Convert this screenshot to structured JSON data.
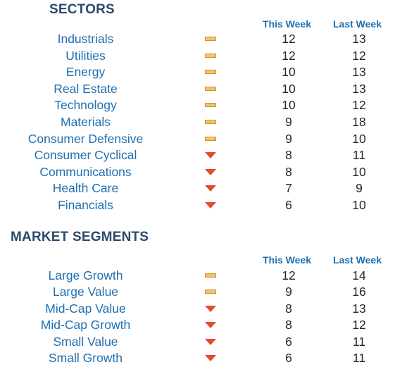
{
  "sectors": {
    "title": "SECTORS",
    "col_this": "This Week",
    "col_last": "Last Week",
    "rows": [
      {
        "name": "Industrials",
        "trend": "flat",
        "this": "12",
        "last": "13"
      },
      {
        "name": "Utilities",
        "trend": "flat",
        "this": "12",
        "last": "12"
      },
      {
        "name": "Energy",
        "trend": "flat",
        "this": "10",
        "last": "13"
      },
      {
        "name": "Real Estate",
        "trend": "flat",
        "this": "10",
        "last": "13"
      },
      {
        "name": "Technology",
        "trend": "flat",
        "this": "10",
        "last": "12"
      },
      {
        "name": "Materials",
        "trend": "flat",
        "this": "9",
        "last": "18"
      },
      {
        "name": "Consumer Defensive",
        "trend": "flat",
        "this": "9",
        "last": "10"
      },
      {
        "name": "Consumer Cyclical",
        "trend": "down",
        "this": "8",
        "last": "11"
      },
      {
        "name": "Communications",
        "trend": "down",
        "this": "8",
        "last": "10"
      },
      {
        "name": "Health Care",
        "trend": "down",
        "this": "7",
        "last": "9"
      },
      {
        "name": "Financials",
        "trend": "down",
        "this": "6",
        "last": "10"
      }
    ]
  },
  "segments": {
    "title": "MARKET SEGMENTS",
    "col_this": "This Week",
    "col_last": "Last Week",
    "rows": [
      {
        "name": "Large Growth",
        "trend": "flat",
        "this": "12",
        "last": "14"
      },
      {
        "name": "Large Value",
        "trend": "flat",
        "this": "9",
        "last": "16"
      },
      {
        "name": "Mid-Cap Value",
        "trend": "down",
        "this": "8",
        "last": "13"
      },
      {
        "name": "Mid-Cap Growth",
        "trend": "down",
        "this": "8",
        "last": "12"
      },
      {
        "name": "Small Value",
        "trend": "down",
        "this": "6",
        "last": "11"
      },
      {
        "name": "Small Growth",
        "trend": "down",
        "this": "6",
        "last": "11"
      }
    ]
  },
  "colors": {
    "title": "#2b4a6b",
    "label": "#1f6fb0",
    "flat_icon": "#f2c46a",
    "down_icon": "#e04e2b"
  },
  "icons": {
    "flat": "flat-dash-icon",
    "down": "down-arrow-icon"
  }
}
